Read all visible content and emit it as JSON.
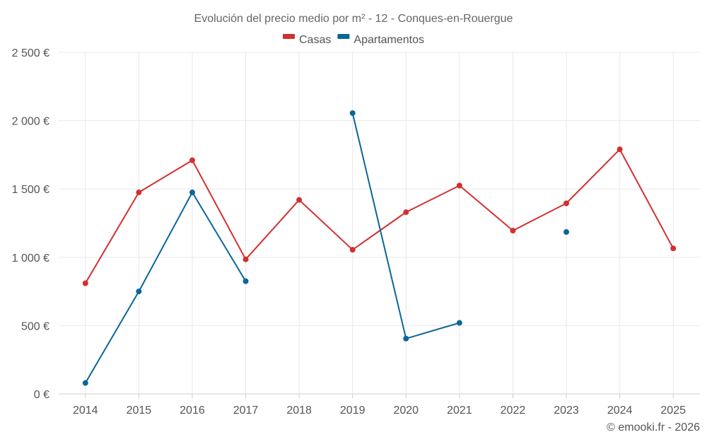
{
  "chart_data": {
    "type": "line",
    "title": "Evolución del precio medio por m² - 12 - Conques-en-Rouergue",
    "categories": [
      "2014",
      "2015",
      "2016",
      "2017",
      "2018",
      "2019",
      "2020",
      "2021",
      "2022",
      "2023",
      "2024",
      "2025"
    ],
    "series": [
      {
        "name": "Casas",
        "color": "#d32f2f",
        "values": [
          810,
          1475,
          1710,
          985,
          1420,
          1055,
          1330,
          1525,
          1195,
          1395,
          1790,
          1065
        ]
      },
      {
        "name": "Apartamentos",
        "color": "#0b6699",
        "values": [
          80,
          750,
          1475,
          825,
          null,
          2055,
          405,
          520,
          null,
          1185,
          null,
          null
        ]
      }
    ],
    "ylim": [
      0,
      2500
    ],
    "yticks": [
      0,
      500,
      1000,
      1500,
      2000,
      2500
    ],
    "ytick_labels": [
      "0 €",
      "500 €",
      "1 000 €",
      "1 500 €",
      "2 000 €",
      "2 500 €"
    ],
    "xlabel": "",
    "ylabel": "",
    "grid": true,
    "legend_position": "top-center"
  },
  "credit": "© emooki.fr - 2026"
}
